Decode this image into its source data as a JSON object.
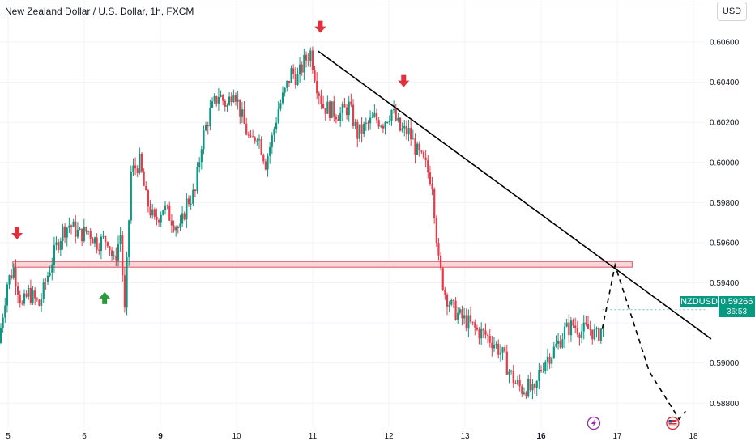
{
  "header": {
    "title": "New Zealand Dollar / U.S. Dollar, 1h, FXCM",
    "currency_button": "USD"
  },
  "price_tag": {
    "symbol": "NZDUSD",
    "price": "0.59266",
    "countdown": "36:53",
    "color": "#089981"
  },
  "colors": {
    "up": "#089981",
    "down": "#f23645",
    "arrow_down": "#e0303c",
    "arrow_up": "#2a9a3c",
    "zone_fill": "#f6cfd2",
    "zone_stroke": "#e0505c",
    "trendline": "#000000"
  },
  "chart_data": {
    "type": "candlestick",
    "symbol": "NZDUSD",
    "y_axis": {
      "ticks": [
        0.608,
        0.606,
        0.604,
        0.602,
        0.6,
        0.598,
        0.596,
        0.594,
        0.592,
        0.59,
        0.588
      ],
      "labels": [
        "",
        "0.60600",
        "0.60400",
        "0.60200",
        "0.60000",
        "0.59800",
        "0.59600",
        "0.59400",
        "",
        "0.59000",
        "0.58800"
      ],
      "range": [
        0.5868,
        0.6081
      ]
    },
    "x_axis": {
      "labels": [
        "5",
        "6",
        "9",
        "10",
        "11",
        "12",
        "13",
        "16",
        "17",
        "18"
      ],
      "bold": [
        "9",
        "16"
      ],
      "range_hours": [
        0,
        330
      ]
    },
    "path_points": [
      [
        0,
        0.591
      ],
      [
        4,
        0.594
      ],
      [
        7,
        0.5947
      ],
      [
        11,
        0.5928
      ],
      [
        14,
        0.5935
      ],
      [
        19,
        0.5929
      ],
      [
        23,
        0.5944
      ],
      [
        27,
        0.5958
      ],
      [
        30,
        0.5966
      ],
      [
        33,
        0.5969
      ],
      [
        38,
        0.5964
      ],
      [
        42,
        0.5966
      ],
      [
        46,
        0.596
      ],
      [
        51,
        0.5962
      ],
      [
        54,
        0.595
      ],
      [
        57,
        0.5964
      ],
      [
        59,
        0.5925
      ],
      [
        62,
        0.5995
      ],
      [
        66,
        0.6
      ],
      [
        69,
        0.5982
      ],
      [
        73,
        0.597
      ],
      [
        77,
        0.5978
      ],
      [
        81,
        0.5972
      ],
      [
        85,
        0.5966
      ],
      [
        88,
        0.598
      ],
      [
        92,
        0.5985
      ],
      [
        95,
        0.601
      ],
      [
        99,
        0.6025
      ],
      [
        103,
        0.6034
      ],
      [
        107,
        0.6028
      ],
      [
        110,
        0.6038
      ],
      [
        114,
        0.6022
      ],
      [
        118,
        0.6009
      ],
      [
        121,
        0.6015
      ],
      [
        125,
        0.6
      ],
      [
        128,
        0.6012
      ],
      [
        131,
        0.6027
      ],
      [
        134,
        0.6035
      ],
      [
        137,
        0.6045
      ],
      [
        140,
        0.6042
      ],
      [
        143,
        0.605
      ],
      [
        146,
        0.6055
      ],
      [
        149,
        0.6039
      ],
      [
        152,
        0.6028
      ],
      [
        156,
        0.6026
      ],
      [
        160,
        0.6024
      ],
      [
        164,
        0.6028
      ],
      [
        168,
        0.6014
      ],
      [
        172,
        0.6018
      ],
      [
        176,
        0.6022
      ],
      [
        180,
        0.602
      ],
      [
        184,
        0.6026
      ],
      [
        188,
        0.6016
      ],
      [
        192,
        0.6015
      ],
      [
        196,
        0.6005
      ],
      [
        200,
        0.5998
      ],
      [
        203,
        0.599
      ],
      [
        206,
        0.595
      ],
      [
        209,
        0.5935
      ],
      [
        212,
        0.5928
      ],
      [
        216,
        0.5923
      ],
      [
        220,
        0.592
      ],
      [
        224,
        0.5916
      ],
      [
        228,
        0.5914
      ],
      [
        232,
        0.591
      ],
      [
        236,
        0.5904
      ],
      [
        239,
        0.5896
      ],
      [
        242,
        0.589
      ],
      [
        245,
        0.5887
      ],
      [
        248,
        0.5888
      ],
      [
        251,
        0.5884
      ],
      [
        253,
        0.5895
      ],
      [
        256,
        0.5902
      ],
      [
        259,
        0.5905
      ],
      [
        262,
        0.591
      ],
      [
        265,
        0.5916
      ],
      [
        269,
        0.5919
      ],
      [
        273,
        0.5916
      ],
      [
        277,
        0.5917
      ],
      [
        280,
        0.5913
      ],
      [
        282,
        0.5917
      ]
    ],
    "annotations": {
      "support_zone": {
        "low": 0.59478,
        "high": 0.59506,
        "from_hour": 6,
        "to_hour": 296
      },
      "trendline": {
        "from": [
          149,
          0.60555
        ],
        "to": [
          333,
          0.5912
        ]
      },
      "projection": [
        [
          282,
          0.5917
        ],
        [
          288,
          0.59488
        ],
        [
          304,
          0.58958
        ],
        [
          318,
          0.5872
        ],
        [
          321,
          0.5876
        ]
      ],
      "down_arrows": [
        [
          8,
          0.5962
        ],
        [
          150,
          0.6065
        ],
        [
          189,
          0.6038
        ]
      ],
      "up_arrows": [
        [
          49,
          0.5935
        ]
      ],
      "events": [
        [
          278,
          0.587,
          "lightning"
        ],
        [
          315,
          0.587,
          "us-flag"
        ]
      ]
    }
  }
}
